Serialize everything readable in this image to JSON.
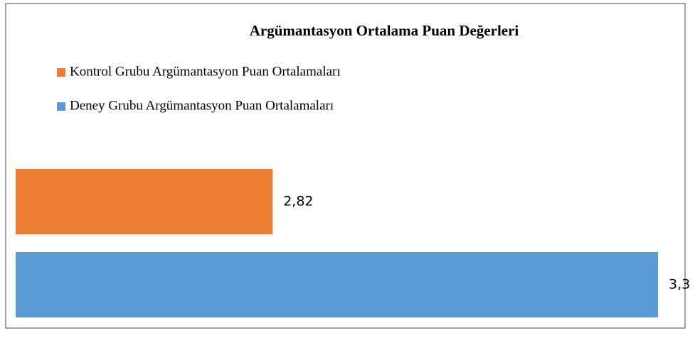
{
  "chart_data": {
    "type": "hbar",
    "title": "Argümantasyon Ortalama Puan Değerleri",
    "categories": [
      null
    ],
    "series": [
      {
        "name": "Kontrol Grubu Argümantasyon Puan Ortalamaları",
        "color": "#ed7d31",
        "values": [
          2.82
        ],
        "value_labels": [
          "2,82"
        ]
      },
      {
        "name": "Deney Grubu Argümantasyon Puan Ortalamaları",
        "color": "#5b9bd5",
        "values": [
          3.3
        ],
        "value_labels": [
          "3,3"
        ]
      }
    ],
    "xlim": [
      2.5,
      3.3
    ],
    "legend": "top-left"
  }
}
